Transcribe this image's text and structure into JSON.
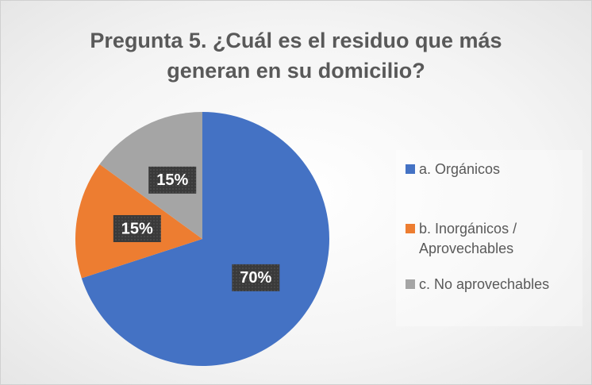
{
  "chart_data": {
    "type": "pie",
    "title": [
      "Pregunta 5. ¿Cuál es el residuo que más",
      "generan en su domicilio?"
    ],
    "categories": [
      "a. Orgánicos",
      "b. Inorgánicos / Aprovechables",
      "c. No aprovechables"
    ],
    "values": [
      70,
      15,
      15
    ],
    "value_labels": [
      "70%",
      "15%",
      "15%"
    ],
    "colors": [
      "#4472c4",
      "#ed7d31",
      "#a5a5a5"
    ],
    "legend": "right"
  }
}
